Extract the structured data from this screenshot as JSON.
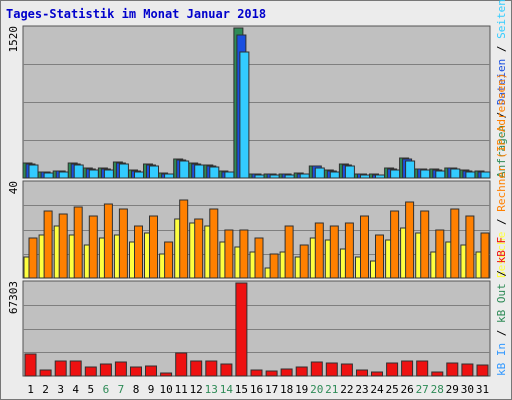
{
  "chart_data": {
    "type": "bar",
    "title": "Tages-Statistik im Monat Januar 2018",
    "categories": [
      "1",
      "2",
      "3",
      "4",
      "5",
      "6",
      "7",
      "8",
      "9",
      "10",
      "11",
      "12",
      "13",
      "14",
      "15",
      "16",
      "17",
      "18",
      "19",
      "20",
      "21",
      "22",
      "23",
      "24",
      "25",
      "26",
      "27",
      "28",
      "29",
      "30",
      "31"
    ],
    "weekend_days": [
      "6",
      "7",
      "13",
      "14",
      "20",
      "21",
      "27",
      "28"
    ],
    "day_label_colors": {
      "weekday": "#000000",
      "weekend": "#2e8b57"
    },
    "panels": [
      {
        "id": "requests",
        "max_label": "1520",
        "ylim": [
          0,
          1520
        ],
        "series": [
          {
            "name": "Anfragen",
            "color": "#2e8b57",
            "values": [
              150,
              65,
              75,
              150,
              100,
              100,
              160,
              80,
              140,
              50,
              190,
              150,
              130,
              70,
              1520,
              45,
              45,
              45,
              50,
              125,
              80,
              140,
              45,
              40,
              100,
              200,
              95,
              90,
              105,
              80,
              70
            ]
          },
          {
            "name": "Dateien",
            "color": "#1a4fe0",
            "values": [
              145,
              60,
              70,
              145,
              95,
              95,
              155,
              75,
              135,
              45,
              180,
              145,
              125,
              65,
              1450,
              40,
              40,
              40,
              45,
              120,
              75,
              135,
              40,
              35,
              95,
              190,
              90,
              85,
              100,
              75,
              65
            ]
          },
          {
            "name": "Seiten",
            "color": "#33ccff",
            "values": [
              130,
              55,
              60,
              130,
              85,
              85,
              140,
              65,
              120,
              40,
              170,
              130,
              115,
              60,
              1280,
              35,
              35,
              35,
              40,
              105,
              65,
              120,
              35,
              30,
              85,
              170,
              80,
              75,
              90,
              65,
              60
            ]
          }
        ]
      },
      {
        "id": "visits",
        "max_label": "40",
        "ylim": [
          0,
          40
        ],
        "series": [
          {
            "name": "Besuche",
            "color": "#ffff40",
            "values": [
              9,
              18,
              22,
              18,
              14,
              17,
              18,
              15,
              19,
              10,
              25,
              23,
              22,
              15,
              13,
              11,
              4,
              11,
              9,
              17,
              16,
              12,
              9,
              7,
              16,
              21,
              19,
              11,
              15,
              14,
              11
            ]
          },
          {
            "name": "Rechner (IP-Adressen)",
            "color": "#ff8000",
            "values": [
              17,
              28,
              27,
              30,
              26,
              31,
              29,
              22,
              26,
              15,
              33,
              25,
              29,
              20,
              20,
              17,
              10,
              22,
              14,
              23,
              22,
              23,
              26,
              18,
              28,
              32,
              28,
              20,
              29,
              26,
              19
            ]
          }
        ]
      },
      {
        "id": "kbytes",
        "max_label": "67303",
        "ylim": [
          0,
          67303
        ],
        "series": [
          {
            "name": "kB In",
            "color": "#3399ff",
            "values": []
          },
          {
            "name": "kB Out",
            "color": "#2e8b57",
            "values": []
          },
          {
            "name": "kB F",
            "color": "#ee1111",
            "values": [
              16000,
              4500,
              11000,
              11000,
              6500,
              8500,
              10000,
              6500,
              7500,
              2500,
              16500,
              11000,
              11000,
              8500,
              67303,
              4500,
              3500,
              5000,
              6500,
              10000,
              9500,
              8500,
              4500,
              3000,
              9500,
              10500,
              10500,
              3000,
              9500,
              9000,
              8000
            ]
          }
        ]
      }
    ],
    "legend_placement": "right-vertical",
    "grid": true
  },
  "colors": {
    "plot_bg": "#c0c0c0",
    "grid_line": "#7f7f7f",
    "bar_outline": "#303030",
    "title": "#0000cc"
  },
  "legend_separator": " / "
}
